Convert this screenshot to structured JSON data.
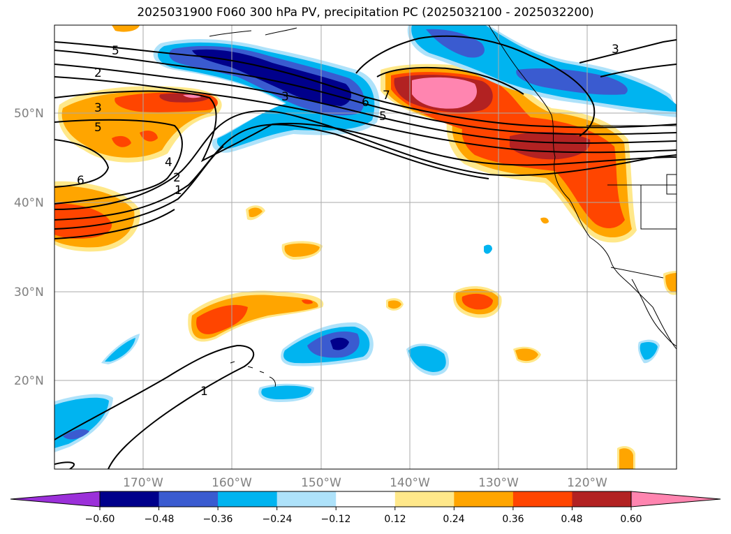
{
  "title": "2025031900 F060 300 hPa PV, precipitation PC (2025032100 - 2025032200)",
  "map": {
    "lat_ticks": [
      "50°N",
      "40°N",
      "30°N",
      "20°N"
    ],
    "lon_ticks": [
      "170°W",
      "160°W",
      "150°W",
      "140°W",
      "130°W",
      "120°W"
    ],
    "contour_labels": [
      "5",
      "2",
      "3",
      "5",
      "6",
      "4",
      "2",
      "1",
      "3",
      "6",
      "5",
      "7",
      "3",
      "1"
    ]
  },
  "colorbar": {
    "labels": [
      "−0.60",
      "−0.48",
      "−0.36",
      "−0.24",
      "−0.12",
      "0.12",
      "0.24",
      "0.36",
      "0.48",
      "0.60"
    ],
    "colors": [
      "#9b30d9",
      "#00008b",
      "#3a5bd0",
      "#00b4f0",
      "#aee2fa",
      "#ffffff",
      "#ffe88a",
      "#ffa500",
      "#ff4500",
      "#b22222",
      "#ff85b0"
    ]
  }
}
